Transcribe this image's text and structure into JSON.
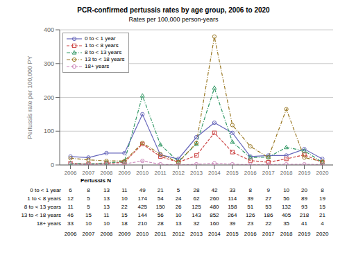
{
  "chart_data": {
    "type": "line",
    "title": "PCR-confirmed pertussis rates by age group, 2006 to 2020",
    "subtitle": "Rates per 100,000 person-years",
    "ylabel": "Pertussis rate per 100,000 PY",
    "x": [
      2006,
      2007,
      2008,
      2009,
      2010,
      2011,
      2012,
      2013,
      2014,
      2015,
      2016,
      2017,
      2018,
      2019,
      2020
    ],
    "xlim": [
      2005.4,
      2020.6
    ],
    "xticks": [
      2006,
      2007,
      2008,
      2009,
      2010,
      2011,
      2012,
      2013,
      2014,
      2015,
      2016,
      2017,
      2018,
      2019,
      2020
    ],
    "ylim": [
      0,
      400
    ],
    "yticks": [
      0,
      100,
      200,
      300,
      400
    ],
    "grid": "y",
    "legend": "upper left",
    "series": [
      {
        "name": "0 to < 1 year",
        "color": "#6666BB",
        "line_style": "solid",
        "marker": "circle",
        "values": [
          25,
          22,
          35,
          35,
          150,
          30,
          18,
          82,
          125,
          95,
          25,
          28,
          28,
          47,
          18
        ]
      },
      {
        "name": "1 to < 8 years",
        "color": "#CC4444",
        "line_style": "dashed",
        "marker": "square",
        "values": [
          5,
          3,
          5,
          8,
          62,
          25,
          8,
          28,
          95,
          38,
          13,
          8,
          18,
          30,
          8
        ]
      },
      {
        "name": "8 to < 13 years",
        "color": "#339966",
        "line_style": "dashdot",
        "marker": "triangle",
        "values": [
          5,
          3,
          6,
          10,
          205,
          60,
          10,
          62,
          228,
          68,
          22,
          23,
          52,
          42,
          8
        ]
      },
      {
        "name": "13 to < 18 years",
        "color": "#997722",
        "line_style": "dashdot",
        "marker": "circle",
        "values": [
          20,
          15,
          12,
          12,
          65,
          32,
          8,
          65,
          380,
          118,
          55,
          22,
          165,
          22,
          10
        ]
      },
      {
        "name": "18+ years",
        "color": "#CC88BB",
        "line_style": "dashed",
        "marker": "circle",
        "values": [
          2,
          1,
          2,
          3,
          12,
          2,
          0,
          2,
          5,
          2,
          1,
          1,
          2,
          2,
          1
        ]
      }
    ],
    "table": {
      "title": "Pertussis N",
      "rows": [
        {
          "name": "0 to < 1 year",
          "values": [
            "6",
            "8",
            "13",
            "11",
            "49",
            "21",
            "5",
            "28",
            "42",
            "33",
            "8",
            "9",
            "10",
            "20",
            "8"
          ]
        },
        {
          "name": "1 to < 8 years",
          "values": [
            "12",
            "5",
            "13",
            "10",
            "174",
            "54",
            "24",
            "62",
            "260",
            "114",
            "39",
            "27",
            "56",
            "89",
            "19"
          ]
        },
        {
          "name": "8 to < 13 years",
          "values": [
            "11",
            "5",
            "13",
            "22",
            "425",
            "150",
            "26",
            "125",
            "480",
            "158",
            "51",
            "53",
            "132",
            "93",
            "15"
          ]
        },
        {
          "name": "13 to < 18 years",
          "values": [
            "46",
            "15",
            "11",
            "15",
            "144",
            "56",
            "10",
            "143",
            "852",
            "264",
            "126",
            "186",
            "405",
            "218",
            "21"
          ]
        },
        {
          "name": "18+ years",
          "values": [
            "33",
            "10",
            "10",
            "18",
            "210",
            "28",
            "13",
            "32",
            "160",
            "39",
            "23",
            "22",
            "35",
            "41",
            "4"
          ]
        }
      ]
    }
  }
}
